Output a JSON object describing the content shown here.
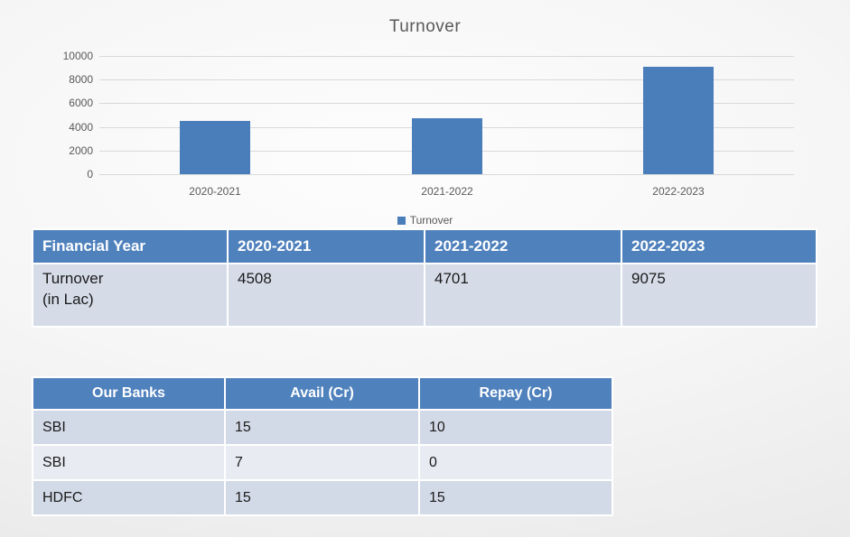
{
  "chart_data": {
    "type": "bar",
    "title": "Turnover",
    "categories": [
      "2020-2021",
      "2021-2022",
      "2022-2023"
    ],
    "series": [
      {
        "name": "Turnover",
        "values": [
          4508,
          4701,
          9075
        ]
      }
    ],
    "xlabel": "",
    "ylabel": "",
    "ylim": [
      0,
      10000
    ],
    "yticks": [
      0,
      2000,
      4000,
      6000,
      8000,
      10000
    ],
    "grid": true,
    "legend_position": "bottom",
    "bar_color": "#4A7EBB"
  },
  "turnover_table": {
    "headers": [
      "Financial Year",
      "2020-2021",
      "2021-2022",
      "2022-2023"
    ],
    "rows": [
      {
        "label": "Turnover\n(in Lac)",
        "values": [
          "4508",
          "4701",
          "9075"
        ]
      }
    ]
  },
  "banks_table": {
    "headers": [
      "Our Banks",
      "Avail (Cr)",
      "Repay (Cr)"
    ],
    "rows": [
      [
        "SBI",
        "15",
        "10"
      ],
      [
        "SBI",
        "7",
        "0"
      ],
      [
        "HDFC",
        "15",
        "15"
      ]
    ]
  },
  "colors": {
    "accent_blue": "#4A7EBB",
    "table_header_blue": "#4F81BD",
    "table1_body": "#D5DCE8",
    "band_dark": "#D3DAE7",
    "band_light": "#E9EBF3",
    "gridline": "#D9D9D9",
    "title_text": "#595959",
    "body_text": "#1A1A1A"
  }
}
